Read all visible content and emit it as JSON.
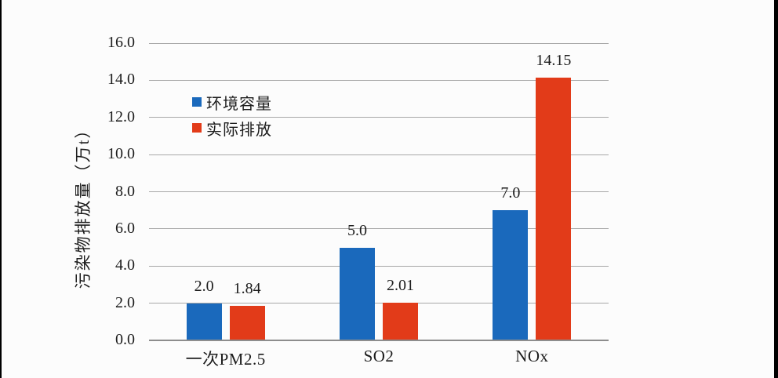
{
  "chart_data": {
    "type": "bar",
    "title": "",
    "categories": [
      "一次PM2.5",
      "SO2",
      "NOx"
    ],
    "series": [
      {
        "name": "环境容量",
        "color": "#1A69BC",
        "values": [
          2.0,
          5.0,
          7.0
        ],
        "value_labels": [
          "2.0",
          "5.0",
          "7.0"
        ]
      },
      {
        "name": "实际排放",
        "color": "#E23B19",
        "values": [
          1.84,
          2.01,
          14.15
        ],
        "value_labels": [
          "1.84",
          "2.01",
          "14.15"
        ]
      }
    ],
    "xlabel": "",
    "ylabel": "污染物排放量（万t）",
    "ylim": [
      0,
      16
    ],
    "ytick_step": 2,
    "ytick_labels": [
      "0.0",
      "2.0",
      "4.0",
      "6.0",
      "8.0",
      "10.0",
      "12.0",
      "14.0",
      "16.0"
    ],
    "grid": true,
    "legend_position": "inside-upper-left"
  },
  "style": {
    "background": "#FCFCFC",
    "gridline_color": "#A7A7A7",
    "axis_line_color": "#8D8D8D",
    "text_color": "#1D1D1D",
    "edge_bar_color": "#000000"
  }
}
